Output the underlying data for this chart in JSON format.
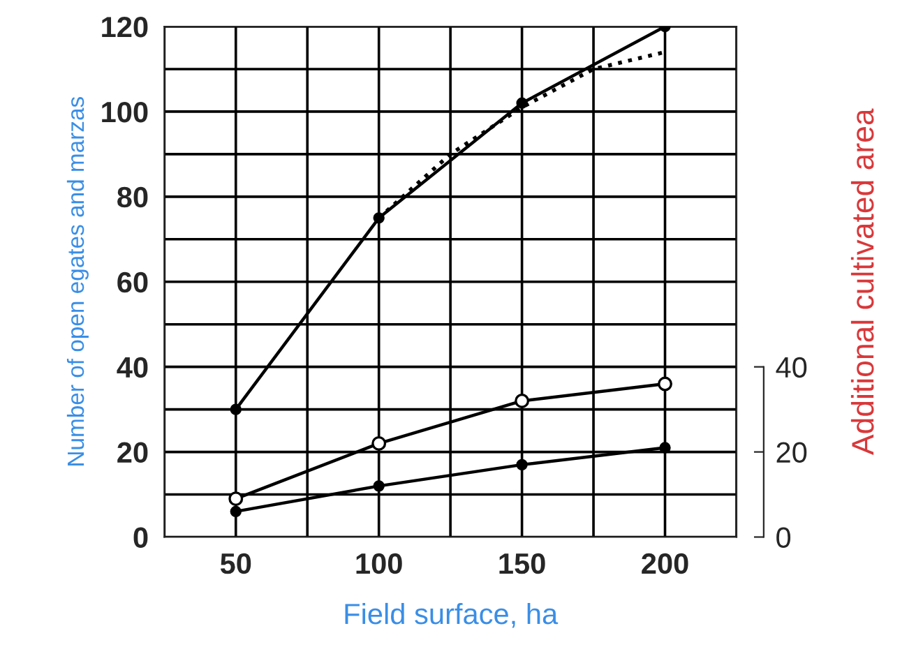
{
  "chart_data": {
    "type": "line",
    "xlabel": "Field surface, ha",
    "ylabel": "Number of open egates and marzas",
    "y2label": "Additional cultivated area",
    "xlim": [
      25,
      225
    ],
    "xticks": [
      50,
      100,
      150,
      200
    ],
    "ylim": [
      0,
      120
    ],
    "yticks": [
      0,
      20,
      40,
      60,
      80,
      100,
      120
    ],
    "y2lim": [
      0,
      120
    ],
    "y2ticks": [
      0,
      20,
      40
    ],
    "grid": true,
    "series": [
      {
        "x": [
          50,
          100,
          150,
          200
        ],
        "values": [
          30,
          75,
          102,
          120
        ],
        "color": "#000000",
        "marker": "circle",
        "line_style": "solid"
      },
      {
        "x": [
          100,
          125,
          150,
          175,
          200
        ],
        "values": [
          75,
          90,
          101,
          110,
          114
        ],
        "color": "#000000",
        "marker": "none",
        "line_style": "dotted"
      },
      {
        "x": [
          50,
          100,
          150,
          200
        ],
        "values": [
          9,
          22,
          32,
          36
        ],
        "color": "#000000",
        "marker": "circle",
        "colors": [
          "#ffffff",
          "#ffffff",
          "#ffffff",
          "#ffffff"
        ],
        "line_style": "solid"
      },
      {
        "x": [
          50,
          100,
          150,
          200
        ],
        "values": [
          6,
          12,
          17,
          21
        ],
        "color": "#000000",
        "marker": "circle",
        "line_style": "solid"
      }
    ]
  }
}
